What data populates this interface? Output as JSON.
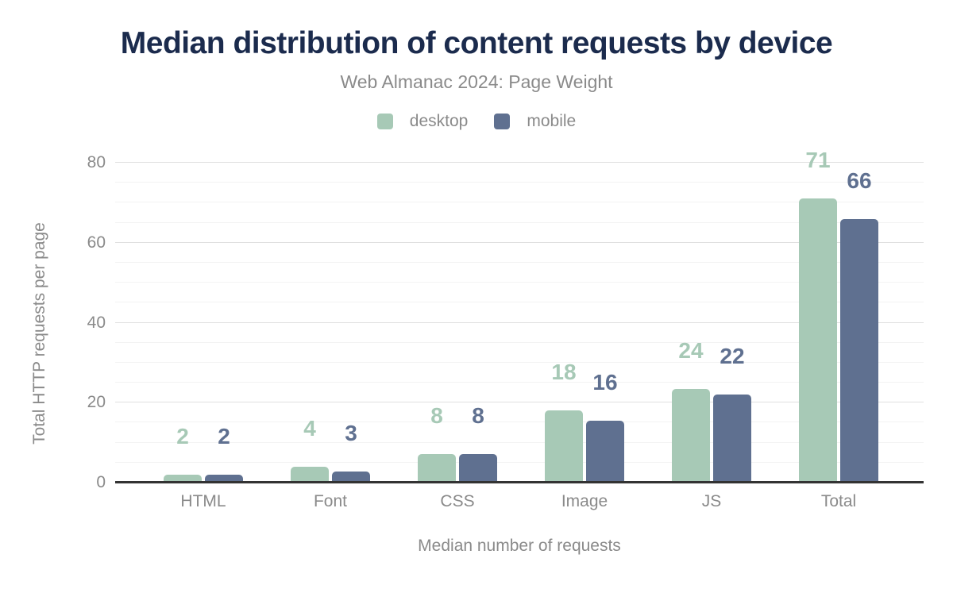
{
  "chart_data": {
    "type": "bar",
    "title": "Median distribution of content requests by device",
    "subtitle": "Web Almanac 2024: Page Weight",
    "xlabel": "Median number of requests",
    "ylabel": "Total HTTP requests per page",
    "categories": [
      "HTML",
      "Font",
      "CSS",
      "Image",
      "JS",
      "Total"
    ],
    "series": [
      {
        "name": "desktop",
        "color": "#a7c9b6",
        "values": [
          2,
          4,
          8,
          18,
          24,
          71
        ],
        "bar_heights_units": [
          2,
          4,
          7.2,
          18,
          23.5,
          71
        ]
      },
      {
        "name": "mobile",
        "color": "#5f7090",
        "values": [
          2,
          3,
          8,
          16,
          22,
          66
        ],
        "bar_heights_units": [
          2,
          2.8,
          7.2,
          15.5,
          22,
          66
        ]
      }
    ],
    "ylim": [
      0,
      80
    ],
    "yticks": [
      0,
      20,
      40,
      60,
      80
    ],
    "minor_grid_step": 5,
    "major_grid_step": 20,
    "grid": true,
    "legend_position": "top",
    "data_labels_shown": true
  },
  "colors": {
    "title": "#1b2b4d",
    "muted_text": "#8a8a8a",
    "axis_line": "#333333",
    "grid_major": "#e0e0e0",
    "grid_minor": "#f3f3f3",
    "desktop": "#a7c9b6",
    "mobile": "#5f7090",
    "background": "#ffffff"
  }
}
